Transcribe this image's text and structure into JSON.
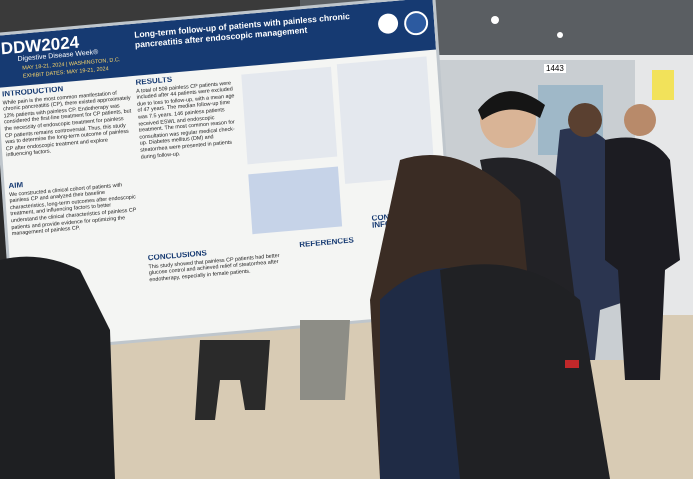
{
  "banner": {
    "logo": "DDW2024",
    "subtitle": "Digestive Disease Week®",
    "dates": "MAY 18-21, 2024 | WASHINGTON, D.C.",
    "exhibit": "EXHIBIT DATES: MAY 19-21, 2024"
  },
  "poster": {
    "title": "Long-term follow-up of patients with painless chronic pancreatitis after endoscopic management",
    "sections": [
      {
        "heading": "INTRODUCTION",
        "text": "While pain is the most common manifestation of chronic pancreatitis (CP), there existed approximately 12% patients with painless CP. Endotherapy was considered the first-line treatment for CP patients, but the necessity of endoscopic treatment for painless CP patients remains controversial. Thus, this study was to determine the long-term outcome of painless CP after endoscopic treatment and explore influencing factors."
      },
      {
        "heading": "AIM",
        "text": "We constructed a clinical cohort of patients with painless CP and analyzed their baseline characteristics, long-term outcomes after endoscopic treatment, and influencing factors to better understand the clinical characteristics of painless CP patients and provide evidence for optimizing the management of painless CP."
      },
      {
        "heading": "RESULTS",
        "text": "A total of 509 painless CP patients were included after 44 patients were excluded due to loss to follow-up, with a mean age of 47 years. The median follow-up time was 7.5 years. 146 painless patients received ESWL and endoscopic treatment. The most common reason for consultation was regular medical check-up. Diabetes mellitus (DM) and steatorrhea were presented in patients during follow-up."
      },
      {
        "heading": "CONCLUSIONS",
        "text": "This study showed that painless CP patients had better glucose control and achieved relief of steatorrhea after endotherapy, especially in female patients."
      },
      {
        "heading": "REFERENCES",
        "text": ""
      },
      {
        "heading": "CONTACT INFORMATION",
        "text": ""
      }
    ]
  },
  "board_number": "1443"
}
